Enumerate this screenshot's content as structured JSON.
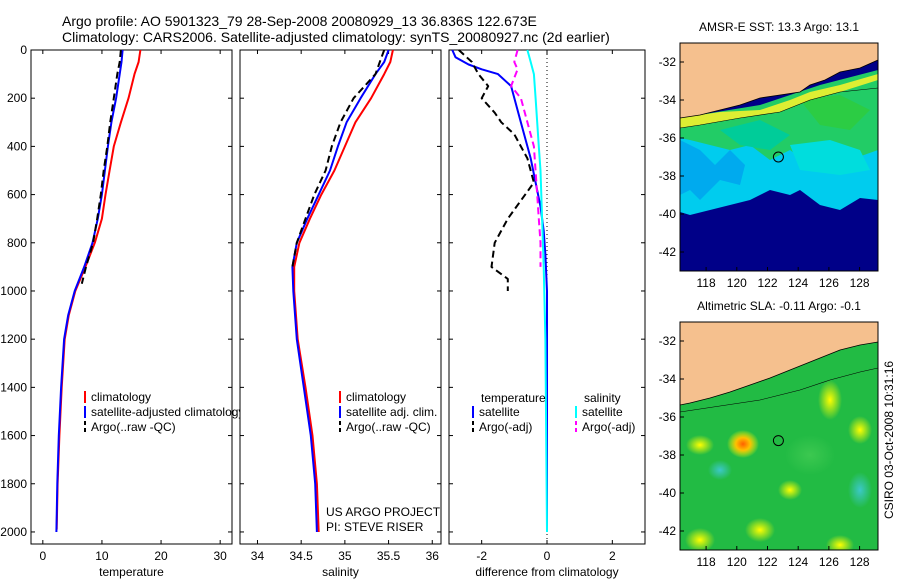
{
  "header": {
    "line1": "Argo profile: AO 5901323_79 28-Sep-2008 20080929_13 36.836S 122.673E",
    "line2": "Climatology: CARS2006. Satellite-adjusted climatology: synTS_20080927.nc (2d earlier)"
  },
  "credit": "CSIRO 03-Oct-2008 10:31:16",
  "project": {
    "line1": "US ARGO PROJECT",
    "line2": "PI: STEVE RISER"
  },
  "colors": {
    "climatology": "#ff0000",
    "satellite": "#0000ff",
    "argo": "#000000",
    "sat_salinity": "#00ffff",
    "argo_salinity": "#ff00ff",
    "land": "#f5c08e"
  },
  "chart_data": [
    {
      "type": "line",
      "xlabel": "temperature",
      "ylabel": "",
      "xlim": [
        -2,
        32
      ],
      "ylim": [
        2050,
        0
      ],
      "xticks": [
        0,
        10,
        20,
        30
      ],
      "yticks": [
        0,
        200,
        400,
        600,
        800,
        1000,
        1200,
        1400,
        1600,
        1800,
        2000
      ],
      "legend": [
        "climatology",
        "satellite-adjusted climatology",
        "Argo(..raw -QC)"
      ],
      "series": [
        {
          "name": "climatology",
          "color": "#ff0000",
          "dash": "",
          "x": [
            16.5,
            16.2,
            15.5,
            14.5,
            13.2,
            12.0,
            11.3,
            10.6,
            10.0,
            8.8,
            7.2,
            5.5,
            4.4,
            3.7,
            3.2,
            2.8,
            2.5,
            2.35
          ],
          "y": [
            0,
            50,
            100,
            200,
            300,
            400,
            500,
            600,
            700,
            800,
            900,
            1000,
            1100,
            1200,
            1400,
            1600,
            1800,
            1990
          ]
        },
        {
          "name": "satellite-adjusted climatology",
          "color": "#0000ff",
          "dash": "",
          "x": [
            13.5,
            13.3,
            13.0,
            12.4,
            11.6,
            11.0,
            10.5,
            10.0,
            9.3,
            8.4,
            7.0,
            5.4,
            4.3,
            3.6,
            3.1,
            2.7,
            2.45,
            2.3
          ],
          "y": [
            0,
            50,
            100,
            200,
            300,
            400,
            500,
            600,
            700,
            800,
            900,
            1000,
            1100,
            1200,
            1400,
            1600,
            1800,
            2000
          ]
        },
        {
          "name": "Argo(..raw -QC)",
          "color": "#000000",
          "dash": "7,4",
          "x": [
            13.2,
            13.0,
            12.6,
            12.0,
            11.4,
            10.9,
            10.3,
            9.8,
            9.2,
            8.5,
            7.3,
            6.6
          ],
          "y": [
            0,
            50,
            100,
            200,
            300,
            400,
            500,
            600,
            700,
            800,
            900,
            970
          ]
        }
      ]
    },
    {
      "type": "line",
      "xlabel": "salinity",
      "ylabel": "",
      "xlim": [
        33.8,
        36.1
      ],
      "ylim": [
        2050,
        0
      ],
      "xticks": [
        34,
        34.5,
        35,
        35.5,
        36
      ],
      "legend": [
        "climatology",
        "satellite adj. clim.",
        "Argo(..raw -QC)"
      ],
      "series": [
        {
          "name": "climatology",
          "color": "#ff0000",
          "dash": "",
          "x": [
            35.55,
            35.52,
            35.45,
            35.3,
            35.12,
            35.0,
            34.88,
            34.73,
            34.6,
            34.48,
            34.42,
            34.42,
            34.46,
            34.55,
            34.63,
            34.68,
            34.7
          ],
          "y": [
            0,
            50,
            100,
            200,
            300,
            400,
            500,
            600,
            700,
            800,
            900,
            1000,
            1200,
            1400,
            1600,
            1800,
            2000
          ]
        },
        {
          "name": "satellite adj. clim.",
          "color": "#0000ff",
          "dash": "",
          "x": [
            35.5,
            35.45,
            35.35,
            35.18,
            35.02,
            34.92,
            34.83,
            34.7,
            34.57,
            34.45,
            34.4,
            34.41,
            34.45,
            34.53,
            34.61,
            34.66,
            34.68
          ],
          "y": [
            0,
            50,
            100,
            200,
            300,
            400,
            500,
            600,
            700,
            800,
            900,
            1000,
            1200,
            1400,
            1600,
            1800,
            2000
          ]
        },
        {
          "name": "Argo(..raw -QC)",
          "color": "#000000",
          "dash": "7,4",
          "x": [
            35.45,
            35.4,
            35.35,
            35.1,
            34.95,
            34.85,
            34.78,
            34.65,
            34.55,
            34.45,
            34.4
          ],
          "y": [
            0,
            50,
            100,
            200,
            300,
            400,
            500,
            600,
            700,
            800,
            900
          ]
        }
      ]
    },
    {
      "type": "line",
      "xlabel": "difference from climatology",
      "ylabel": "",
      "xlim": [
        -3,
        3
      ],
      "ylim": [
        2050,
        0
      ],
      "xticks": [
        -2,
        0,
        2
      ],
      "legend_left_title": "temperature",
      "legend_right_title": "salinity",
      "legend": [
        "satellite",
        "Argo(-adj)",
        "satellite",
        "Argo(-adj)"
      ],
      "series": [
        {
          "name": "temperature satellite",
          "color": "#0000ff",
          "dash": "",
          "x": [
            -2.9,
            -2.8,
            -2.4,
            -2.0,
            -1.5,
            -1.1,
            -0.9,
            -0.7,
            -0.5,
            -0.35,
            -0.2,
            -0.1,
            -0.05,
            0,
            0
          ],
          "y": [
            0,
            30,
            60,
            80,
            100,
            150,
            250,
            350,
            450,
            550,
            650,
            750,
            850,
            1000,
            2000
          ]
        },
        {
          "name": "temperature Argo(-adj)",
          "color": "#000000",
          "dash": "7,4",
          "x": [
            -2.7,
            -2.3,
            -2.1,
            -1.8,
            -2.0,
            -1.6,
            -1.4,
            -1.0,
            -0.6,
            -0.4,
            -1.2,
            -1.6,
            -1.7,
            -1.2,
            -1.2
          ],
          "y": [
            0,
            50,
            100,
            150,
            200,
            260,
            300,
            350,
            450,
            550,
            700,
            800,
            900,
            950,
            1000
          ]
        },
        {
          "name": "salinity satellite",
          "color": "#00ffff",
          "dash": "",
          "x": [
            -0.6,
            -0.5,
            -0.4,
            -0.35,
            -0.3,
            -0.25,
            -0.2,
            -0.15,
            -0.1,
            -0.05,
            0
          ],
          "y": [
            0,
            50,
            100,
            200,
            300,
            400,
            500,
            700,
            900,
            1200,
            2000
          ]
        },
        {
          "name": "salinity Argo(-adj)",
          "color": "#ff00ff",
          "dash": "7,4",
          "x": [
            -0.9,
            -1.0,
            -0.9,
            -1.1,
            -0.8,
            -0.6,
            -0.4,
            -0.3,
            -0.25,
            -0.2,
            -0.2
          ],
          "y": [
            0,
            50,
            80,
            150,
            200,
            300,
            400,
            600,
            700,
            800,
            900
          ]
        }
      ],
      "reference_line_x": 0
    },
    {
      "type": "heatmap",
      "title": "AMSR-E SST: 13.3  Argo: 13.1",
      "xlim": [
        116.3,
        129.2
      ],
      "ylim": [
        -43,
        -31
      ],
      "xticks": [
        118,
        120,
        122,
        124,
        126,
        128
      ],
      "yticks": [
        -32,
        -34,
        -36,
        -38,
        -40,
        -42
      ],
      "marker": {
        "lon": 122.673,
        "lat": -36.836
      }
    },
    {
      "type": "heatmap",
      "title": "Altimetric SLA: -0.11  Argo: -0.1",
      "xlim": [
        116.3,
        129.2
      ],
      "ylim": [
        -43,
        -31
      ],
      "xticks": [
        118,
        120,
        122,
        124,
        126,
        128
      ],
      "yticks": [
        -32,
        -34,
        -36,
        -38,
        -40,
        -42
      ],
      "marker": {
        "lon": 122.673,
        "lat": -36.836
      }
    }
  ]
}
